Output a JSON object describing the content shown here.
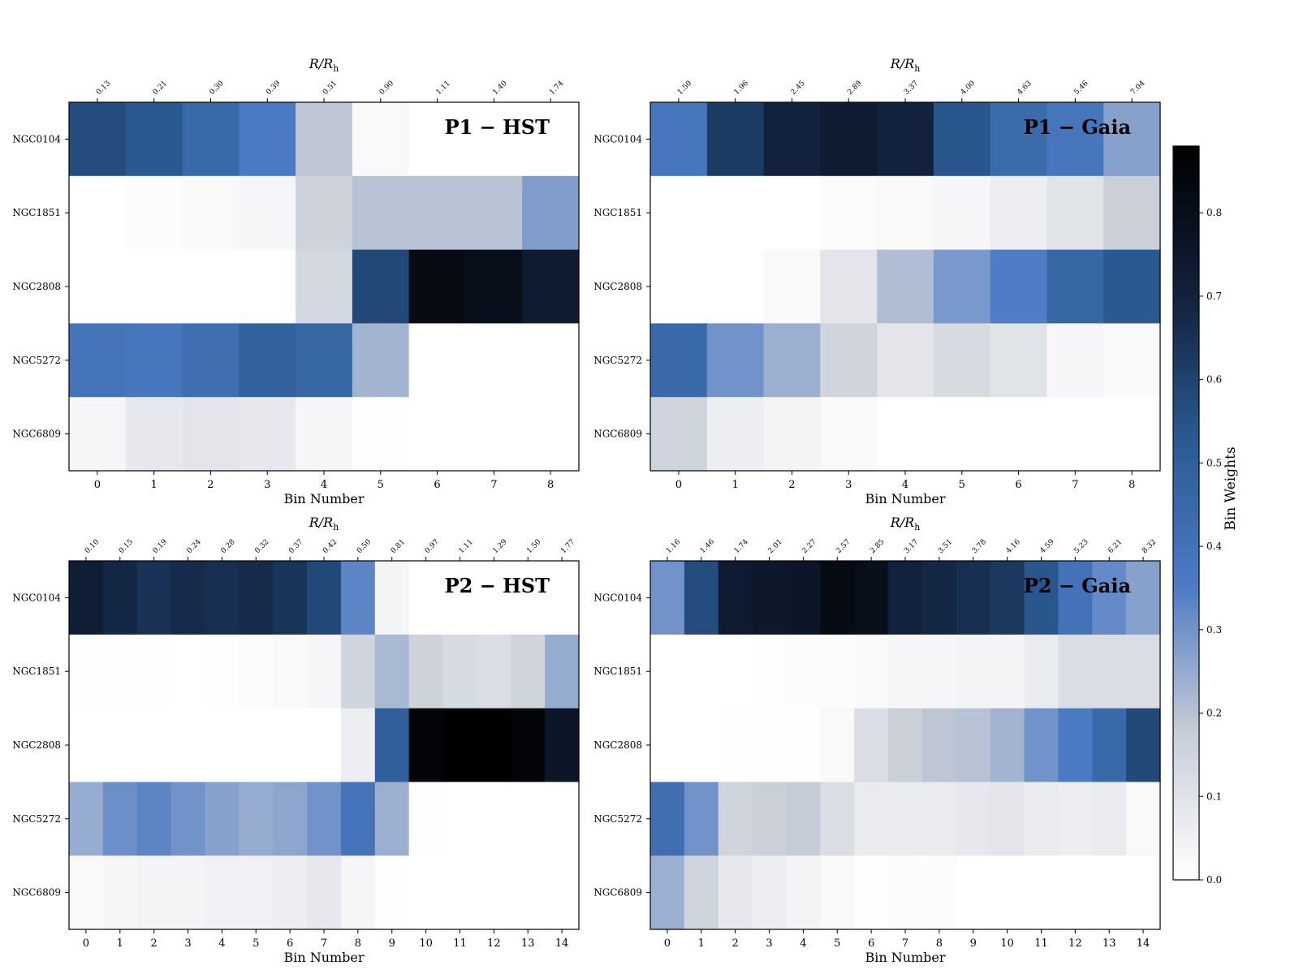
{
  "figure": {
    "colorbar": {
      "label": "Bin Weights",
      "ticks": [
        0.0,
        0.1,
        0.2,
        0.3,
        0.4,
        0.5,
        0.6,
        0.7,
        0.8
      ],
      "tick_labels": [
        "0.0",
        "0.1",
        "0.2",
        "0.3",
        "0.4",
        "0.5",
        "0.6",
        "0.7",
        "0.8"
      ],
      "range": [
        0,
        0.88
      ],
      "colormap": [
        "#ffffff",
        "#c8cdd7",
        "#4e7bc4",
        "#2a5a93",
        "#11203a",
        "#000000"
      ]
    }
  },
  "chart_data": [
    {
      "type": "heatmap",
      "panel_label": "P1 − HST",
      "xlabel": "Bin Number",
      "top_label": "R/R",
      "top_label_sub": "h",
      "rows": [
        "NGC0104",
        "NGC1851",
        "NGC2808",
        "NGC5272",
        "NGC6809"
      ],
      "x_tick_labels": [
        "0",
        "1",
        "2",
        "3",
        "4",
        "5",
        "6",
        "7",
        "8"
      ],
      "top_tick_labels": [
        "0.13",
        "0.21",
        "0.30",
        "0.39",
        "0.51",
        "0.90",
        "1.11",
        "1.40",
        "1.74"
      ],
      "values": [
        [
          0.57,
          0.53,
          0.45,
          0.36,
          0.19,
          0.02,
          0.0,
          0.0,
          0.0
        ],
        [
          0.0,
          0.01,
          0.02,
          0.03,
          0.16,
          0.2,
          0.2,
          0.2,
          0.28
        ],
        [
          0.0,
          0.0,
          0.0,
          0.0,
          0.14,
          0.58,
          0.82,
          0.8,
          0.73
        ],
        [
          0.39,
          0.38,
          0.42,
          0.49,
          0.46,
          0.23,
          0.0,
          0.0,
          0.0
        ],
        [
          0.03,
          0.08,
          0.09,
          0.08,
          0.03,
          0.005,
          0.0,
          0.0,
          0.0
        ]
      ]
    },
    {
      "type": "heatmap",
      "panel_label": "P1 − Gaia",
      "xlabel": "Bin Number",
      "top_label": "R/R",
      "top_label_sub": "h",
      "rows": [
        "NGC0104",
        "NGC1851",
        "NGC2808",
        "NGC5272",
        "NGC6809"
      ],
      "x_tick_labels": [
        "0",
        "1",
        "2",
        "3",
        "4",
        "5",
        "6",
        "7",
        "8"
      ],
      "top_tick_labels": [
        "1.50",
        "1.96",
        "2.45",
        "2.89",
        "3.37",
        "4.00",
        "4.63",
        "5.46",
        "7.04"
      ],
      "values": [
        [
          0.38,
          0.62,
          0.7,
          0.73,
          0.7,
          0.54,
          0.44,
          0.38,
          0.27
        ],
        [
          0.0,
          0.0,
          0.0,
          0.01,
          0.02,
          0.03,
          0.06,
          0.1,
          0.17
        ],
        [
          0.0,
          0.0,
          0.02,
          0.09,
          0.21,
          0.29,
          0.35,
          0.46,
          0.53
        ],
        [
          0.45,
          0.3,
          0.24,
          0.15,
          0.09,
          0.13,
          0.1,
          0.03,
          0.02
        ],
        [
          0.15,
          0.06,
          0.04,
          0.02,
          0.0,
          0.0,
          0.0,
          0.0,
          0.0
        ]
      ]
    },
    {
      "type": "heatmap",
      "panel_label": "P2 − HST",
      "xlabel": "Bin Number",
      "top_label": "R/R",
      "top_label_sub": "h",
      "rows": [
        "NGC0104",
        "NGC1851",
        "NGC2808",
        "NGC5272",
        "NGC6809"
      ],
      "x_tick_labels": [
        "0",
        "1",
        "2",
        "3",
        "4",
        "5",
        "6",
        "7",
        "8",
        "9",
        "10",
        "11",
        "12",
        "13",
        "14"
      ],
      "top_tick_labels": [
        "0.10",
        "0.15",
        "0.19",
        "0.24",
        "0.28",
        "0.32",
        "0.37",
        "0.42",
        "0.50",
        "0.81",
        "0.97",
        "1.11",
        "1.29",
        "1.50",
        "1.77"
      ],
      "values": [
        [
          0.72,
          0.68,
          0.65,
          0.67,
          0.66,
          0.67,
          0.64,
          0.58,
          0.33,
          0.04,
          0.0,
          0.0,
          0.0,
          0.0,
          0.0
        ],
        [
          0.005,
          0.005,
          0.005,
          0.0,
          0.005,
          0.01,
          0.02,
          0.03,
          0.15,
          0.22,
          0.16,
          0.13,
          0.12,
          0.15,
          0.25
        ],
        [
          0.0,
          0.0,
          0.0,
          0.0,
          0.0,
          0.0,
          0.0,
          0.0,
          0.06,
          0.5,
          0.86,
          0.88,
          0.88,
          0.86,
          0.76
        ],
        [
          0.25,
          0.31,
          0.33,
          0.3,
          0.27,
          0.25,
          0.26,
          0.3,
          0.39,
          0.24,
          0.005,
          0.0,
          0.0,
          0.0,
          0.0
        ],
        [
          0.02,
          0.03,
          0.04,
          0.04,
          0.05,
          0.05,
          0.06,
          0.08,
          0.03,
          0.005,
          0.0,
          0.0,
          0.0,
          0.0,
          0.0
        ]
      ]
    },
    {
      "type": "heatmap",
      "panel_label": "P2 − Gaia",
      "xlabel": "Bin Number",
      "top_label": "R/R",
      "top_label_sub": "h",
      "rows": [
        "NGC0104",
        "NGC1851",
        "NGC2808",
        "NGC5272",
        "NGC6809"
      ],
      "x_tick_labels": [
        "0",
        "1",
        "2",
        "3",
        "4",
        "5",
        "6",
        "7",
        "8",
        "9",
        "10",
        "11",
        "12",
        "13",
        "14"
      ],
      "top_tick_labels": [
        "1.16",
        "1.46",
        "1.74",
        "2.01",
        "2.27",
        "2.57",
        "2.85",
        "3.17",
        "3.51",
        "3.78",
        "4.16",
        "4.59",
        "5.23",
        "6.21",
        "8.32"
      ],
      "values": [
        [
          0.3,
          0.57,
          0.73,
          0.75,
          0.76,
          0.82,
          0.8,
          0.7,
          0.68,
          0.66,
          0.63,
          0.54,
          0.4,
          0.32,
          0.27
        ],
        [
          0.0,
          0.0,
          0.0,
          0.005,
          0.01,
          0.01,
          0.02,
          0.03,
          0.03,
          0.04,
          0.04,
          0.07,
          0.12,
          0.12,
          0.12
        ],
        [
          0.0,
          0.0,
          0.005,
          0.005,
          0.005,
          0.02,
          0.12,
          0.17,
          0.19,
          0.2,
          0.23,
          0.3,
          0.36,
          0.45,
          0.58
        ],
        [
          0.42,
          0.3,
          0.15,
          0.17,
          0.18,
          0.12,
          0.07,
          0.07,
          0.07,
          0.08,
          0.09,
          0.07,
          0.06,
          0.07,
          0.02
        ],
        [
          0.24,
          0.15,
          0.08,
          0.06,
          0.04,
          0.02,
          0.005,
          0.01,
          0.01,
          0.0,
          0.0,
          0.0,
          0.0,
          0.0,
          0.0
        ]
      ]
    }
  ]
}
